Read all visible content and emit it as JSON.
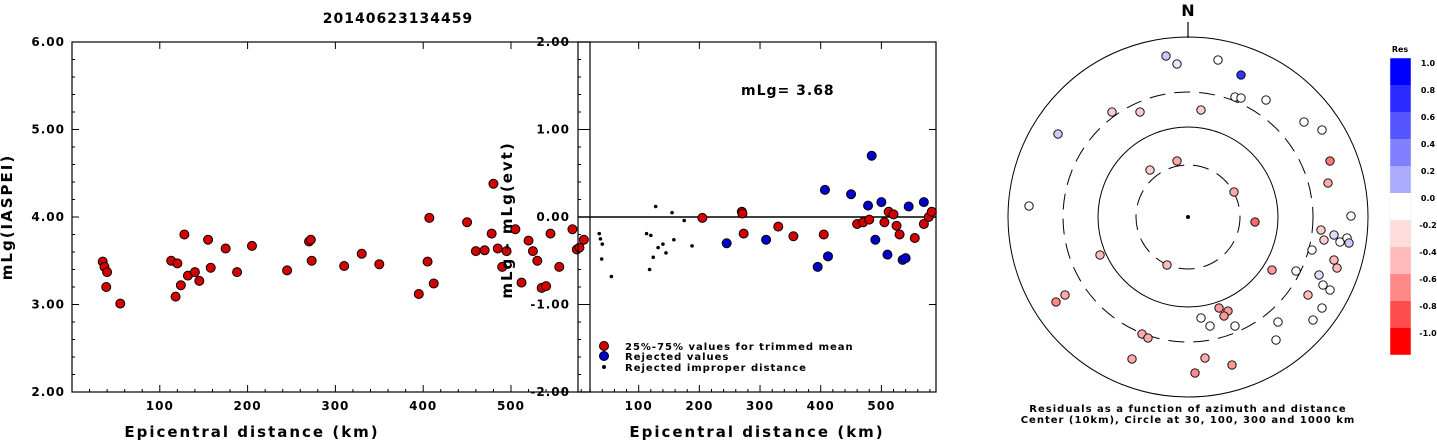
{
  "page_title": "20140623134459",
  "chart_data": [
    {
      "type": "scatter",
      "title": "",
      "xlabel": "Epicentral distance (km)",
      "ylabel": "mLg(IASPEI)",
      "xlim": [
        0,
        590
      ],
      "ylim": [
        2.0,
        6.0
      ],
      "xticks": [
        "100",
        "200",
        "300",
        "400",
        "500"
      ],
      "yticks": [
        "2.00",
        "3.00",
        "4.00",
        "5.00",
        "6.00"
      ],
      "grid": false,
      "series": [
        {
          "color": "#d40000",
          "points": [
            [
              35,
              3.49
            ],
            [
              37,
              3.43
            ],
            [
              39,
              3.2
            ],
            [
              40,
              3.37
            ],
            [
              55,
              3.01
            ],
            [
              113,
              3.5
            ],
            [
              118,
              3.09
            ],
            [
              120,
              3.47
            ],
            [
              124,
              3.22
            ],
            [
              128,
              3.8
            ],
            [
              132,
              3.33
            ],
            [
              140,
              3.37
            ],
            [
              145,
              3.27
            ],
            [
              155,
              3.74
            ],
            [
              158,
              3.42
            ],
            [
              175,
              3.64
            ],
            [
              188,
              3.37
            ],
            [
              205,
              3.67
            ],
            [
              245,
              3.39
            ],
            [
              270,
              3.72
            ],
            [
              272,
              3.74
            ],
            [
              273,
              3.5
            ],
            [
              310,
              3.44
            ],
            [
              330,
              3.58
            ],
            [
              350,
              3.46
            ],
            [
              395,
              3.12
            ],
            [
              405,
              3.49
            ],
            [
              407,
              3.99
            ],
            [
              412,
              3.24
            ],
            [
              450,
              3.94
            ],
            [
              460,
              3.61
            ],
            [
              470,
              3.62
            ],
            [
              478,
              3.81
            ],
            [
              480,
              4.38
            ],
            [
              485,
              3.64
            ],
            [
              490,
              3.43
            ],
            [
              495,
              3.61
            ],
            [
              505,
              3.86
            ],
            [
              512,
              3.25
            ],
            [
              520,
              3.73
            ],
            [
              525,
              3.61
            ],
            [
              530,
              3.5
            ],
            [
              535,
              3.19
            ],
            [
              540,
              3.21
            ],
            [
              545,
              3.81
            ],
            [
              555,
              3.43
            ],
            [
              570,
              3.86
            ],
            [
              575,
              3.63
            ],
            [
              578,
              3.65
            ],
            [
              583,
              3.74
            ]
          ]
        }
      ]
    },
    {
      "type": "scatter",
      "title": "",
      "annotation": "mLg= 3.68",
      "xlabel": "Epicentral distance (km)",
      "ylabel": "mLg - mLg(evt)",
      "xlim": [
        0,
        590
      ],
      "ylim": [
        -2.0,
        2.0
      ],
      "xticks": [
        "100",
        "200",
        "300",
        "400",
        "500"
      ],
      "yticks": [
        "-2.00",
        "-1.00",
        "0.00",
        "1.00",
        "2.00"
      ],
      "grid": false,
      "zero_line": true,
      "legend_position": "bottom-left",
      "series": [
        {
          "name": "25%-75% values for trimmed mean",
          "color": "#d40000",
          "points": [
            [
              205,
              -0.01
            ],
            [
              270,
              0.06
            ],
            [
              271,
              0.04
            ],
            [
              273,
              -0.19
            ],
            [
              330,
              -0.11
            ],
            [
              355,
              -0.22
            ],
            [
              405,
              -0.2
            ],
            [
              460,
              -0.08
            ],
            [
              470,
              -0.06
            ],
            [
              480,
              -0.03
            ],
            [
              505,
              -0.06
            ],
            [
              512,
              0.06
            ],
            [
              520,
              0.03
            ],
            [
              525,
              -0.1
            ],
            [
              530,
              -0.2
            ],
            [
              555,
              -0.24
            ],
            [
              570,
              -0.08
            ],
            [
              578,
              0.0
            ],
            [
              583,
              0.06
            ]
          ]
        },
        {
          "name": "Rejected values",
          "color": "#0000cc",
          "points": [
            [
              245,
              -0.3
            ],
            [
              310,
              -0.26
            ],
            [
              395,
              -0.57
            ],
            [
              407,
              0.31
            ],
            [
              412,
              -0.45
            ],
            [
              450,
              0.26
            ],
            [
              478,
              0.13
            ],
            [
              484,
              0.7
            ],
            [
              490,
              -0.26
            ],
            [
              500,
              0.17
            ],
            [
              510,
              -0.43
            ],
            [
              535,
              -0.49
            ],
            [
              540,
              -0.47
            ],
            [
              545,
              0.12
            ],
            [
              570,
              0.17
            ]
          ]
        },
        {
          "name": "Rejected improper distance",
          "color": "#000000",
          "points": [
            [
              35,
              -0.19
            ],
            [
              37,
              -0.25
            ],
            [
              39,
              -0.48
            ],
            [
              40,
              -0.31
            ],
            [
              55,
              -0.68
            ],
            [
              113,
              -0.19
            ],
            [
              118,
              -0.6
            ],
            [
              120,
              -0.21
            ],
            [
              124,
              -0.46
            ],
            [
              128,
              0.12
            ],
            [
              132,
              -0.35
            ],
            [
              140,
              -0.31
            ],
            [
              145,
              -0.41
            ],
            [
              155,
              0.05
            ],
            [
              158,
              -0.26
            ],
            [
              175,
              -0.04
            ],
            [
              188,
              -0.33
            ]
          ]
        }
      ]
    },
    {
      "type": "scatter",
      "subtype": "polar",
      "north_label": "N",
      "caption_line1": "Residuals as a function of azimuth and distance",
      "caption_line2": "Center (10km), Circle at 30, 100, 300 and 1000 km",
      "colorbar": {
        "title": "Res",
        "labels": [
          "1.0",
          "0.8",
          "0.6",
          "0.4",
          "0.2",
          "0.0",
          "-0.2",
          "-0.4",
          "-0.6",
          "-0.8",
          "-1.0"
        ],
        "colors": [
          "#0000ff",
          "#2b2bff",
          "#5555ff",
          "#8080ff",
          "#aaaaff",
          "#ffffff",
          "#ffdddd",
          "#ffbbbb",
          "#ff8888",
          "#ff4d4d",
          "#ff0000"
        ]
      },
      "points": [
        {
          "x": 1166,
          "y": 56,
          "c": "#c9c9ff"
        },
        {
          "x": 1177,
          "y": 64,
          "c": "#e8e8ff"
        },
        {
          "x": 1218,
          "y": 60,
          "c": "#ffffff"
        },
        {
          "x": 1241,
          "y": 75,
          "c": "#3333ff"
        },
        {
          "x": 1235,
          "y": 97,
          "c": "#ffffff"
        },
        {
          "x": 1241,
          "y": 98,
          "c": "#ffffff"
        },
        {
          "x": 1266,
          "y": 100,
          "c": "#ffffff"
        },
        {
          "x": 1304,
          "y": 122,
          "c": "#ffffff"
        },
        {
          "x": 1322,
          "y": 130,
          "c": "#ffffff"
        },
        {
          "x": 1201,
          "y": 110,
          "c": "#ffcccc"
        },
        {
          "x": 1140,
          "y": 112,
          "c": "#ffcccc"
        },
        {
          "x": 1112,
          "y": 112,
          "c": "#ffcccc"
        },
        {
          "x": 1058,
          "y": 134,
          "c": "#ccccff"
        },
        {
          "x": 1177,
          "y": 161,
          "c": "#ffaaaa"
        },
        {
          "x": 1150,
          "y": 170,
          "c": "#ffcccc"
        },
        {
          "x": 1234,
          "y": 192,
          "c": "#ffaaaa"
        },
        {
          "x": 1330,
          "y": 161,
          "c": "#ff7777"
        },
        {
          "x": 1328,
          "y": 183,
          "c": "#ffaaaa"
        },
        {
          "x": 1255,
          "y": 222,
          "c": "#ff6666"
        },
        {
          "x": 1029,
          "y": 206,
          "c": "#ffffff"
        },
        {
          "x": 1100,
          "y": 255,
          "c": "#ffbbbb"
        },
        {
          "x": 1167,
          "y": 265,
          "c": "#ffbbbb"
        },
        {
          "x": 1272,
          "y": 270,
          "c": "#ff9999"
        },
        {
          "x": 1351,
          "y": 216,
          "c": "#ffffff"
        },
        {
          "x": 1321,
          "y": 230,
          "c": "#ffcccc"
        },
        {
          "x": 1324,
          "y": 240,
          "c": "#ffcccc"
        },
        {
          "x": 1334,
          "y": 235,
          "c": "#ddddff"
        },
        {
          "x": 1340,
          "y": 242,
          "c": "#ffffff"
        },
        {
          "x": 1347,
          "y": 238,
          "c": "#ffffff"
        },
        {
          "x": 1349,
          "y": 243,
          "c": "#ccccff"
        },
        {
          "x": 1312,
          "y": 250,
          "c": "#ffffff"
        },
        {
          "x": 1334,
          "y": 260,
          "c": "#ffbbbb"
        },
        {
          "x": 1337,
          "y": 268,
          "c": "#ffbbbb"
        },
        {
          "x": 1319,
          "y": 275,
          "c": "#ddddff"
        },
        {
          "x": 1296,
          "y": 271,
          "c": "#ffffff"
        },
        {
          "x": 1323,
          "y": 285,
          "c": "#ffffff"
        },
        {
          "x": 1330,
          "y": 290,
          "c": "#ffffff"
        },
        {
          "x": 1308,
          "y": 295,
          "c": "#ffbbbb"
        },
        {
          "x": 1322,
          "y": 308,
          "c": "#ffffff"
        },
        {
          "x": 1313,
          "y": 320,
          "c": "#ffffff"
        },
        {
          "x": 1278,
          "y": 322,
          "c": "#ffffff"
        },
        {
          "x": 1276,
          "y": 340,
          "c": "#ffffff"
        },
        {
          "x": 1065,
          "y": 295,
          "c": "#ffaaaa"
        },
        {
          "x": 1056,
          "y": 302,
          "c": "#ff8888"
        },
        {
          "x": 1219,
          "y": 308,
          "c": "#ff9999"
        },
        {
          "x": 1228,
          "y": 311,
          "c": "#ff9999"
        },
        {
          "x": 1224,
          "y": 316,
          "c": "#ff9999"
        },
        {
          "x": 1201,
          "y": 318,
          "c": "#ffffff"
        },
        {
          "x": 1210,
          "y": 326,
          "c": "#ffffff"
        },
        {
          "x": 1235,
          "y": 326,
          "c": "#ffffff"
        },
        {
          "x": 1142,
          "y": 334,
          "c": "#ffaaaa"
        },
        {
          "x": 1148,
          "y": 338,
          "c": "#ffaaaa"
        },
        {
          "x": 1132,
          "y": 359,
          "c": "#ffaaaa"
        },
        {
          "x": 1205,
          "y": 358,
          "c": "#ffaaaa"
        },
        {
          "x": 1232,
          "y": 365,
          "c": "#ff9999"
        },
        {
          "x": 1195,
          "y": 373,
          "c": "#ff8888"
        }
      ]
    }
  ]
}
